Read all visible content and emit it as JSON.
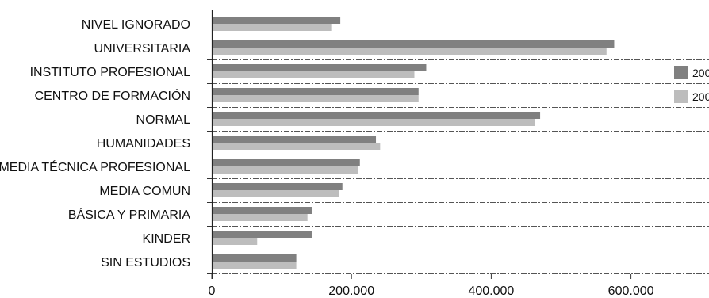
{
  "chart_data": {
    "type": "bar",
    "orientation": "horizontal",
    "categories": [
      "NIVEL IGNORADO",
      "UNIVERSITARIA",
      "INSTITUTO PROFESIONAL",
      "CENTRO DE FORMACIÓN",
      "NORMAL",
      "HUMANIDADES",
      "MEDIA TÉCNICA PROFESIONAL",
      "MEDIA COMUN",
      "BÁSICA Y PRIMARIA",
      "KINDER",
      "SIN ESTUDIOS"
    ],
    "series": [
      {
        "name": "200",
        "color": "#808080",
        "values": [
          184000,
          576000,
          307000,
          296000,
          470000,
          235000,
          212000,
          187000,
          143000,
          143000,
          121000
        ]
      },
      {
        "name": "200",
        "color": "#bdbdbd",
        "values": [
          171000,
          565000,
          290000,
          296000,
          462000,
          241000,
          209000,
          182000,
          137000,
          65000,
          121000
        ]
      }
    ],
    "x_ticks": [
      "0",
      "200.000",
      "400.000",
      "600.000"
    ],
    "xlim": [
      0,
      800000
    ],
    "grid": "dashed horizontal separators",
    "legend": "right"
  }
}
